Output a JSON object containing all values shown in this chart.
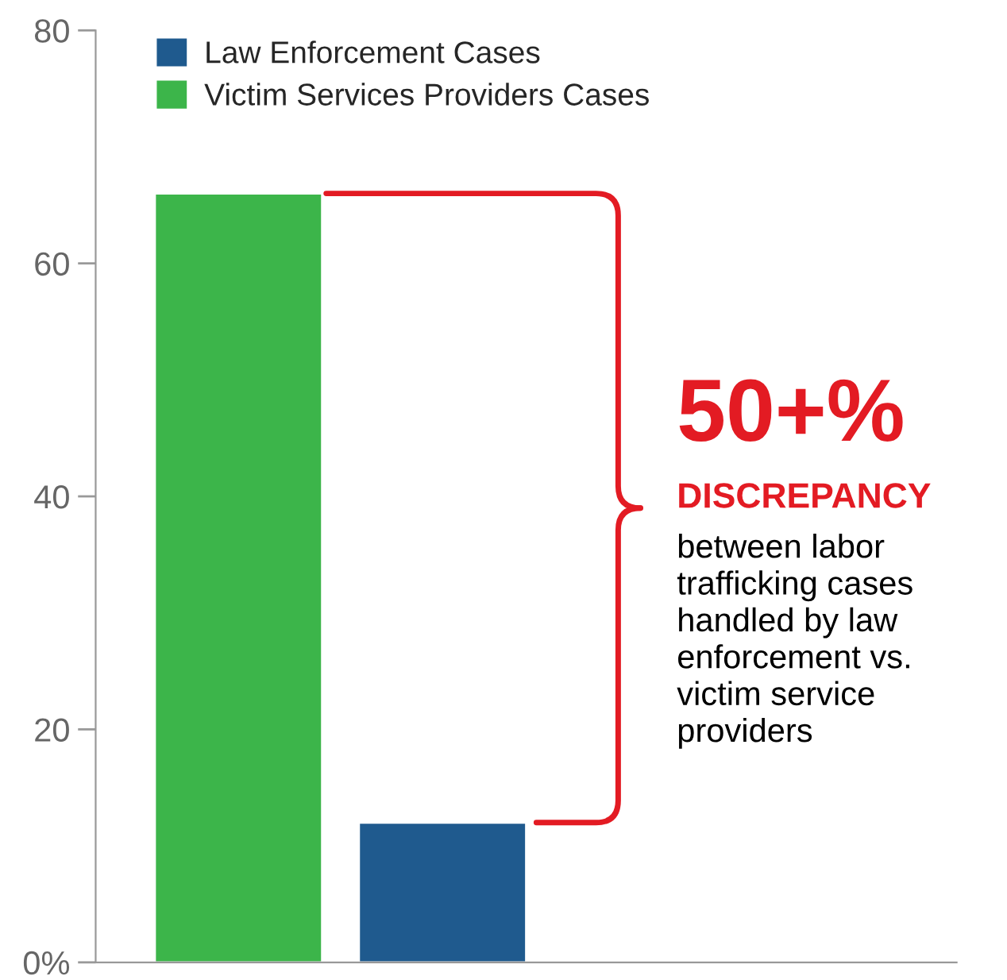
{
  "chart_data": {
    "type": "bar",
    "categories": [
      null,
      null
    ],
    "series": [
      {
        "name": "Law Enforcement Cases",
        "color": "#1f5a8e",
        "values": [
          null,
          12
        ]
      },
      {
        "name": "Victim Services Providers Cases",
        "color": "#3cb54a",
        "values": [
          66,
          null
        ]
      }
    ],
    "stacked": true,
    "ylim": [
      0,
      80
    ],
    "yticks": [
      {
        "value": 0,
        "label": "0%"
      },
      20,
      40,
      60,
      80
    ],
    "grid": false,
    "legend": "top",
    "annotations": [
      "50+%",
      "DISCREPANCY",
      "between labor\ntrafficking cases\nhandled by law\nenforcement vs.\nvictim service\nproviders"
    ]
  }
}
